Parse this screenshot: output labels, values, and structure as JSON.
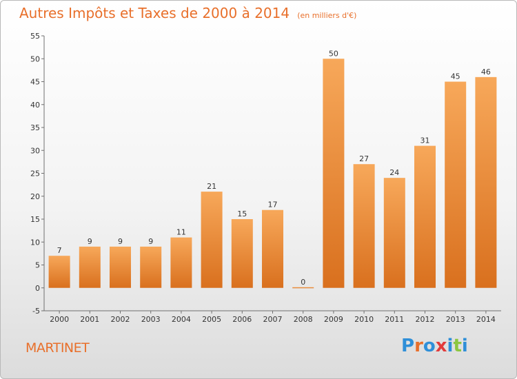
{
  "header": {
    "title": "Autres Impôts et Taxes de 2000 à 2014",
    "unit": "(en milliers d'€)"
  },
  "footer": {
    "commune": "MARTINET",
    "brand": "Proxiti"
  },
  "colors": {
    "title": "#e86f2a",
    "bar_light": "#f7a85a",
    "bar_dark": "#d9701e",
    "brand_letters": [
      "#2f8fd8",
      "#e86f2a",
      "#2f8fd8",
      "#e23b3b",
      "#2f8fd8",
      "#8cc63f",
      "#2f8fd8"
    ]
  },
  "chart_data": {
    "type": "bar",
    "categories": [
      "2000",
      "2001",
      "2002",
      "2003",
      "2004",
      "2005",
      "2006",
      "2007",
      "2008",
      "2009",
      "2010",
      "2011",
      "2012",
      "2013",
      "2014"
    ],
    "values": [
      7,
      9,
      9,
      9,
      11,
      21,
      15,
      17,
      0,
      50,
      27,
      24,
      31,
      45,
      46
    ],
    "data_labels": [
      "7",
      "9",
      "9",
      "9",
      "11",
      "21",
      "15",
      "17",
      "0",
      "50",
      "27",
      "24",
      "31",
      "45",
      "46"
    ],
    "ylim": [
      -5,
      55
    ],
    "yticks": [
      -5,
      0,
      5,
      10,
      15,
      20,
      25,
      30,
      35,
      40,
      45,
      50,
      55
    ],
    "grid": false,
    "legend": "none"
  }
}
